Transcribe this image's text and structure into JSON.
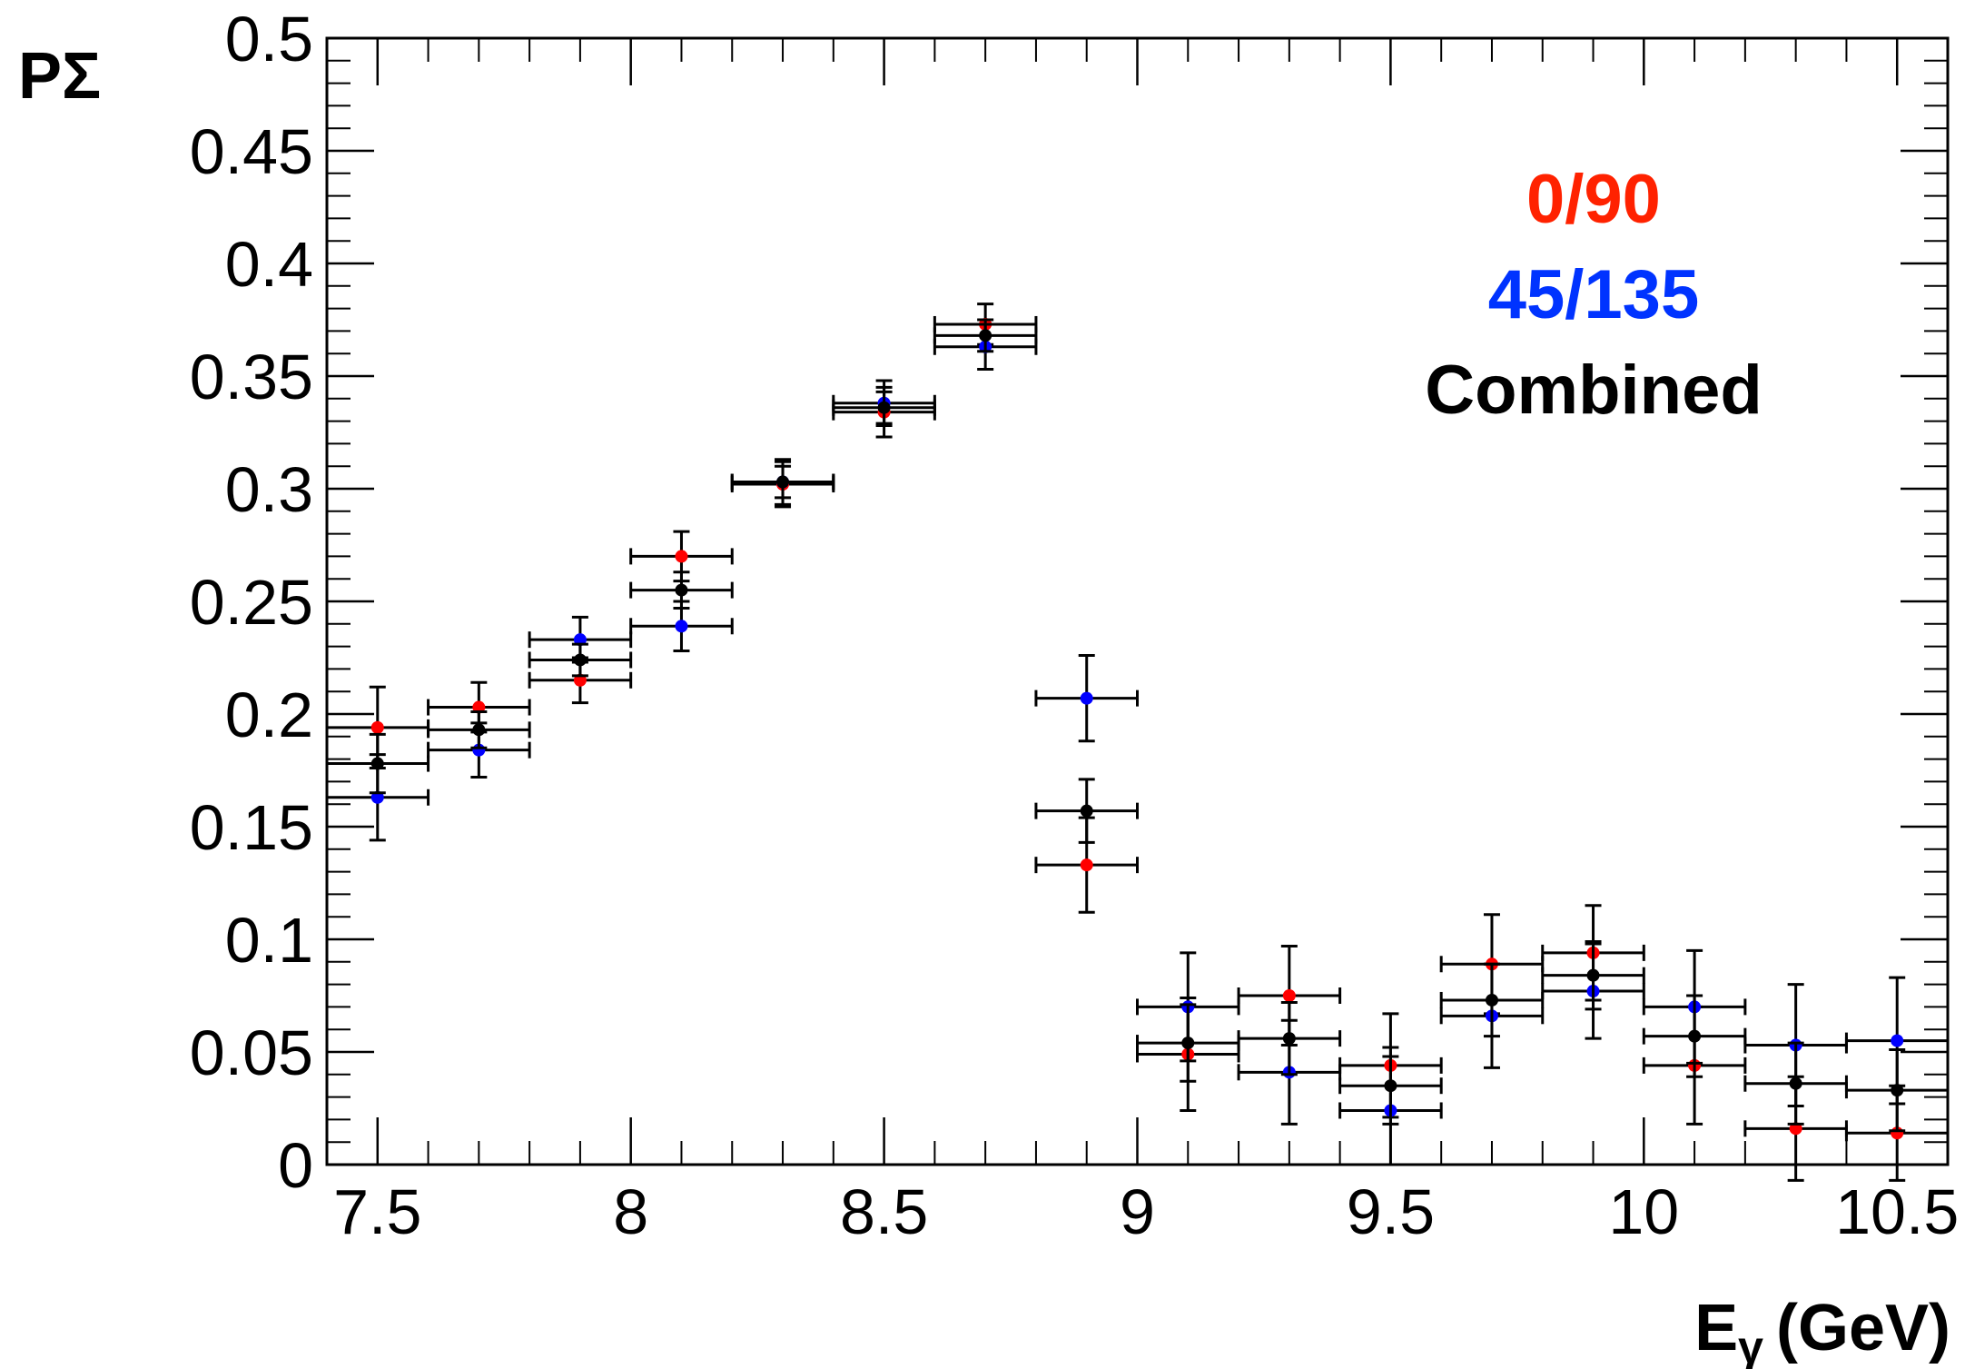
{
  "chart_data": {
    "type": "scatter",
    "title": "",
    "xlabel": "E",
    "xlabel_sub": "γ",
    "xlabel_unit": "(GeV)",
    "ylabel": "PΣ",
    "xlim": [
      7.4,
      10.6
    ],
    "ylim": [
      0,
      0.5
    ],
    "x_ticks": [
      {
        "value": 7.5,
        "label": "7.5"
      },
      {
        "value": 8,
        "label": "8"
      },
      {
        "value": 8.5,
        "label": "8.5"
      },
      {
        "value": 9,
        "label": "9"
      },
      {
        "value": 9.5,
        "label": "9.5"
      },
      {
        "value": 10,
        "label": "10"
      },
      {
        "value": 10.5,
        "label": "10.5"
      }
    ],
    "y_ticks": [
      {
        "value": 0,
        "label": "0"
      },
      {
        "value": 0.05,
        "label": "0.05"
      },
      {
        "value": 0.1,
        "label": "0.1"
      },
      {
        "value": 0.15,
        "label": "0.15"
      },
      {
        "value": 0.2,
        "label": "0.2"
      },
      {
        "value": 0.25,
        "label": "0.25"
      },
      {
        "value": 0.3,
        "label": "0.3"
      },
      {
        "value": 0.35,
        "label": "0.35"
      },
      {
        "value": 0.4,
        "label": "0.4"
      },
      {
        "value": 0.45,
        "label": "0.45"
      },
      {
        "value": 0.5,
        "label": "0.5"
      }
    ],
    "x": [
      7.5,
      7.7,
      7.9,
      8.1,
      8.3,
      8.5,
      8.7,
      8.9,
      9.1,
      9.3,
      9.5,
      9.7,
      9.9,
      10.1,
      10.3,
      10.5
    ],
    "x_err": 0.1,
    "grid": false,
    "legend_position": "top-right",
    "series": [
      {
        "name": "0/90",
        "color": "#ff0000",
        "values": [
          0.194,
          0.203,
          0.215,
          0.27,
          0.302,
          0.334,
          0.373,
          0.133,
          0.049,
          0.075,
          0.044,
          0.089,
          0.094,
          0.044,
          0.016,
          0.014
        ],
        "y_err": [
          0.018,
          0.011,
          0.01,
          0.011,
          0.01,
          0.011,
          0.009,
          0.021,
          0.025,
          0.022,
          0.023,
          0.022,
          0.021,
          0.026,
          0.023,
          0.021
        ]
      },
      {
        "name": "45/135",
        "color": "#0000ff",
        "values": [
          0.163,
          0.184,
          0.233,
          0.239,
          0.303,
          0.338,
          0.363,
          0.207,
          0.07,
          0.041,
          0.024,
          0.066,
          0.077,
          0.07,
          0.053,
          0.055
        ],
        "y_err": [
          0.019,
          0.012,
          0.01,
          0.011,
          0.01,
          0.01,
          0.01,
          0.019,
          0.024,
          0.023,
          0.024,
          0.023,
          0.021,
          0.025,
          0.027,
          0.028
        ]
      },
      {
        "name": "Combined",
        "color": "#000000",
        "values": [
          0.178,
          0.193,
          0.224,
          0.255,
          0.303,
          0.336,
          0.368,
          0.157,
          0.054,
          0.056,
          0.035,
          0.073,
          0.084,
          0.057,
          0.036,
          0.033
        ],
        "y_err": [
          0.013,
          0.008,
          0.007,
          0.008,
          0.007,
          0.007,
          0.007,
          0.014,
          0.017,
          0.016,
          0.017,
          0.016,
          0.015,
          0.018,
          0.018,
          0.018
        ]
      }
    ]
  }
}
